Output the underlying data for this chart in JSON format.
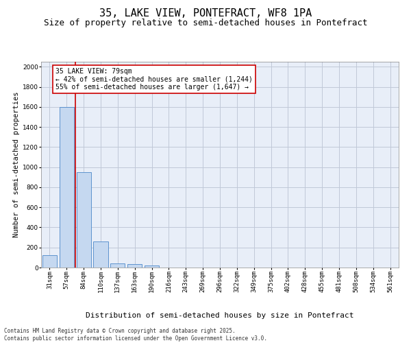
{
  "title": "35, LAKE VIEW, PONTEFRACT, WF8 1PA",
  "subtitle": "Size of property relative to semi-detached houses in Pontefract",
  "xlabel": "Distribution of semi-detached houses by size in Pontefract",
  "ylabel": "Number of semi-detached properties",
  "categories": [
    "31sqm",
    "57sqm",
    "84sqm",
    "110sqm",
    "137sqm",
    "163sqm",
    "190sqm",
    "216sqm",
    "243sqm",
    "269sqm",
    "296sqm",
    "322sqm",
    "349sqm",
    "375sqm",
    "402sqm",
    "428sqm",
    "455sqm",
    "481sqm",
    "508sqm",
    "534sqm",
    "561sqm"
  ],
  "values": [
    120,
    1600,
    950,
    260,
    40,
    35,
    20,
    0,
    0,
    0,
    0,
    0,
    0,
    0,
    0,
    0,
    0,
    0,
    0,
    0,
    0
  ],
  "bar_color": "#c5d8f0",
  "bar_edge_color": "#4a86c8",
  "vline_color": "#cc0000",
  "annotation_text": "35 LAKE VIEW: 79sqm\n← 42% of semi-detached houses are smaller (1,244)\n55% of semi-detached houses are larger (1,647) →",
  "annotation_box_color": "#cc0000",
  "ylim": [
    0,
    2050
  ],
  "yticks": [
    0,
    200,
    400,
    600,
    800,
    1000,
    1200,
    1400,
    1600,
    1800,
    2000
  ],
  "grid_color": "#c0c8d8",
  "background_color": "#e8eef8",
  "footer": "Contains HM Land Registry data © Crown copyright and database right 2025.\nContains public sector information licensed under the Open Government Licence v3.0.",
  "title_fontsize": 11,
  "subtitle_fontsize": 9,
  "xlabel_fontsize": 8,
  "ylabel_fontsize": 7.5,
  "tick_fontsize": 6.5,
  "annotation_fontsize": 7,
  "footer_fontsize": 5.5
}
